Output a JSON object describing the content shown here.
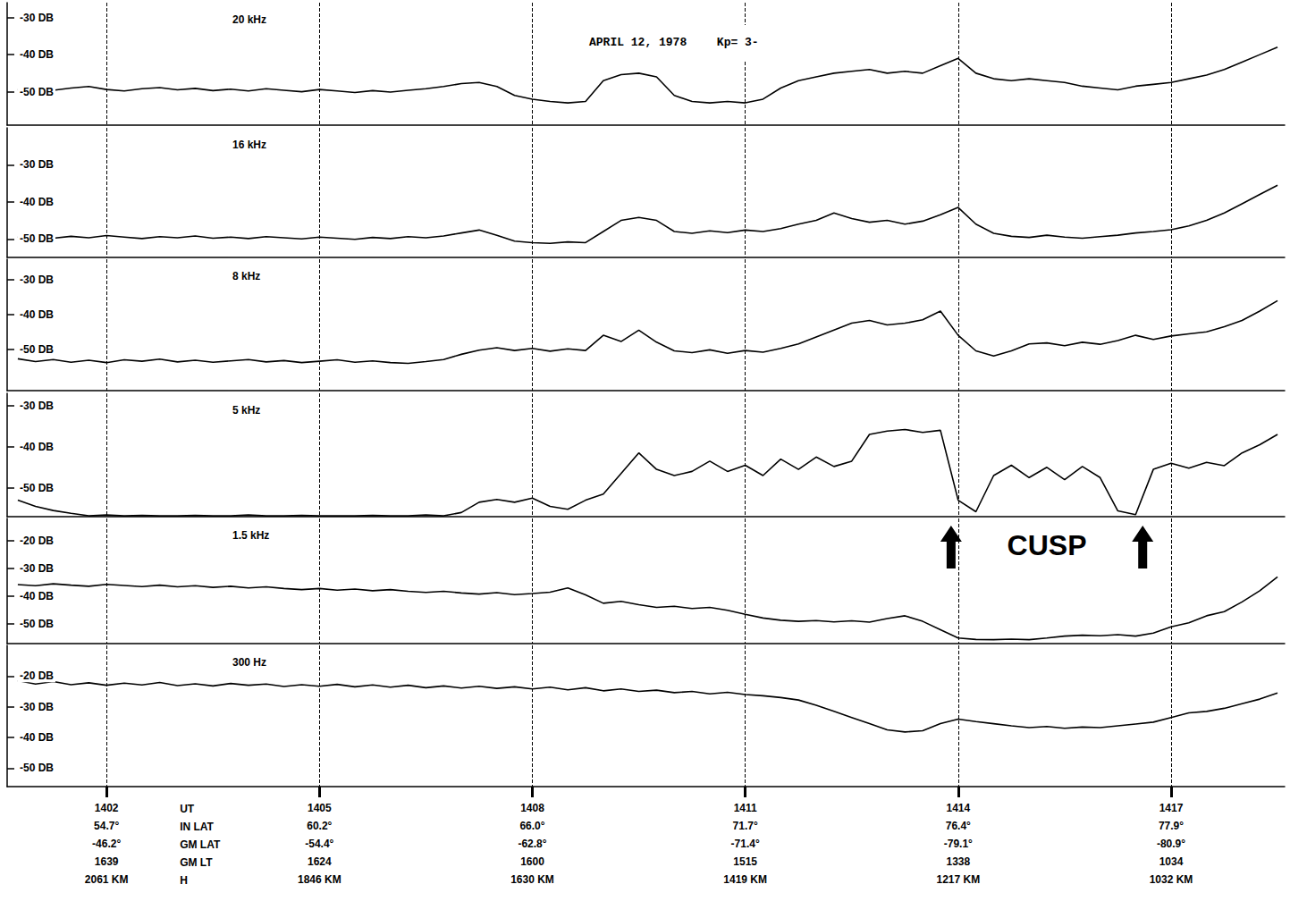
{
  "title": "APRIL 12, 1978",
  "subtitle": "Kp= 3-",
  "annotation": {
    "text": "CUSP",
    "x": [
      1413.9,
      1416.6
    ],
    "panel": "1.5 kHz"
  },
  "ephemeris": {
    "rows": [
      "UT",
      "IN LAT",
      "GM LAT",
      "GM LT",
      "H"
    ],
    "values": [
      [
        "54.7°",
        "-46.2°",
        "1639",
        "2061 KM"
      ],
      [
        "60.2°",
        "-54.4°",
        "1624",
        "1846 KM"
      ],
      [
        "66.0°",
        "-62.8°",
        "1600",
        "1630 KM"
      ],
      [
        "71.7°",
        "-71.4°",
        "1515",
        "1419 KM"
      ],
      [
        "76.4°",
        "-79.1°",
        "1338",
        "1217 KM"
      ],
      [
        "77.9°",
        "-80.9°",
        "1034",
        "1032 KM"
      ]
    ]
  },
  "chart_data": [
    {
      "type": "line",
      "title": "20 kHz",
      "color": "#000000",
      "grid": true,
      "tick_labels": "y",
      "xlim": [
        1400.6,
        1418.6
      ],
      "xticks": [
        1402,
        1405,
        1408,
        1411,
        1414,
        1417
      ],
      "ylim": [
        -59,
        -26
      ],
      "yticks": [
        {
          "value": -30,
          "label": "-30 DB"
        },
        {
          "value": -40,
          "label": "-40 DB"
        },
        {
          "value": -50,
          "label": "-50 DB"
        }
      ],
      "x": [
        1400.75,
        1401,
        1401.25,
        1401.5,
        1401.75,
        1402,
        1402.25,
        1402.5,
        1402.75,
        1403,
        1403.25,
        1403.5,
        1403.75,
        1404,
        1404.25,
        1404.5,
        1404.75,
        1405,
        1405.25,
        1405.5,
        1405.75,
        1406,
        1406.25,
        1406.5,
        1406.75,
        1407,
        1407.25,
        1407.5,
        1407.75,
        1408,
        1408.25,
        1408.5,
        1408.75,
        1409,
        1409.25,
        1409.5,
        1409.75,
        1410,
        1410.25,
        1410.5,
        1410.75,
        1411,
        1411.25,
        1411.5,
        1411.75,
        1412,
        1412.25,
        1412.5,
        1412.75,
        1413,
        1413.25,
        1413.5,
        1413.75,
        1414,
        1414.25,
        1414.5,
        1414.75,
        1415,
        1415.25,
        1415.5,
        1415.75,
        1416,
        1416.25,
        1416.5,
        1416.75,
        1417,
        1417.25,
        1417.5,
        1417.75,
        1418,
        1418.25,
        1418.5
      ],
      "values": [
        -49.5,
        -48.8,
        -49.6,
        -49,
        -48.6,
        -49.4,
        -49.8,
        -49.2,
        -48.9,
        -49.5,
        -49.1,
        -49.7,
        -49.3,
        -49.8,
        -49.2,
        -49.6,
        -50,
        -49.4,
        -49.8,
        -50.2,
        -49.7,
        -50.1,
        -49.6,
        -49.2,
        -48.6,
        -47.8,
        -47.5,
        -48.6,
        -51,
        -52,
        -52.6,
        -53,
        -52.6,
        -47,
        -45.4,
        -45,
        -46,
        -51,
        -52.6,
        -53,
        -52.6,
        -53,
        -52,
        -49,
        -47,
        -46,
        -45,
        -44.5,
        -44,
        -45,
        -44.5,
        -45,
        -43,
        -41,
        -45,
        -46.5,
        -47,
        -46.5,
        -47,
        -47.5,
        -48.5,
        -49,
        -49.5,
        -48.5,
        -48,
        -47.5,
        -46.5,
        -45.5,
        -44,
        -42,
        -40,
        -38
      ]
    },
    {
      "type": "line",
      "title": "16 kHz",
      "color": "#000000",
      "grid": true,
      "tick_labels": "y",
      "xlim": [
        1400.6,
        1418.6
      ],
      "xticks": [
        1402,
        1405,
        1408,
        1411,
        1414,
        1417
      ],
      "ylim": [
        -55,
        -20
      ],
      "yticks": [
        {
          "value": -30,
          "label": "-30 DB"
        },
        {
          "value": -40,
          "label": "-40 DB"
        },
        {
          "value": -50,
          "label": "-50 DB"
        }
      ],
      "x": [
        1400.75,
        1401,
        1401.25,
        1401.5,
        1401.75,
        1402,
        1402.25,
        1402.5,
        1402.75,
        1403,
        1403.25,
        1403.5,
        1403.75,
        1404,
        1404.25,
        1404.5,
        1404.75,
        1405,
        1405.25,
        1405.5,
        1405.75,
        1406,
        1406.25,
        1406.5,
        1406.75,
        1407,
        1407.25,
        1407.5,
        1407.75,
        1408,
        1408.25,
        1408.5,
        1408.75,
        1409,
        1409.25,
        1409.5,
        1409.75,
        1410,
        1410.25,
        1410.5,
        1410.75,
        1411,
        1411.25,
        1411.5,
        1411.75,
        1412,
        1412.25,
        1412.5,
        1412.75,
        1413,
        1413.25,
        1413.5,
        1413.75,
        1414,
        1414.25,
        1414.5,
        1414.75,
        1415,
        1415.25,
        1415.5,
        1415.75,
        1416,
        1416.25,
        1416.5,
        1416.75,
        1417,
        1417.25,
        1417.5,
        1417.75,
        1418,
        1418.25,
        1418.5
      ],
      "values": [
        -49.6,
        -49,
        -49.8,
        -49.3,
        -49.7,
        -49.1,
        -49.5,
        -49.9,
        -49.4,
        -49.7,
        -49.2,
        -49.8,
        -49.5,
        -49.9,
        -49.4,
        -49.7,
        -50,
        -49.5,
        -49.8,
        -50.1,
        -49.6,
        -49.9,
        -49.4,
        -49.7,
        -49.2,
        -48.4,
        -47.6,
        -49,
        -50.6,
        -51,
        -51.2,
        -50.8,
        -51,
        -48,
        -45,
        -44.2,
        -45,
        -48,
        -48.5,
        -47.8,
        -48.3,
        -47.6,
        -48,
        -47.2,
        -46,
        -45,
        -43,
        -44.5,
        -45.5,
        -45,
        -46,
        -45.2,
        -43.5,
        -41.5,
        -46,
        -48.5,
        -49.3,
        -49.6,
        -49,
        -49.5,
        -49.8,
        -49.4,
        -49,
        -48.4,
        -48,
        -47.5,
        -46.5,
        -45,
        -43,
        -40.5,
        -38,
        -35.5
      ]
    },
    {
      "type": "line",
      "title": "8 kHz",
      "color": "#000000",
      "grid": true,
      "tick_labels": "y",
      "xlim": [
        1400.6,
        1418.6
      ],
      "xticks": [
        1402,
        1405,
        1408,
        1411,
        1414,
        1417
      ],
      "ylim": [
        -62,
        -24
      ],
      "yticks": [
        {
          "value": -30,
          "label": "-30 DB"
        },
        {
          "value": -40,
          "label": "-40 DB"
        },
        {
          "value": -50,
          "label": "-50 DB"
        }
      ],
      "x": [
        1400.75,
        1401,
        1401.25,
        1401.5,
        1401.75,
        1402,
        1402.25,
        1402.5,
        1402.75,
        1403,
        1403.25,
        1403.5,
        1403.75,
        1404,
        1404.25,
        1404.5,
        1404.75,
        1405,
        1405.25,
        1405.5,
        1405.75,
        1406,
        1406.25,
        1406.5,
        1406.75,
        1407,
        1407.25,
        1407.5,
        1407.75,
        1408,
        1408.25,
        1408.5,
        1408.75,
        1409,
        1409.25,
        1409.5,
        1409.75,
        1410,
        1410.25,
        1410.5,
        1410.75,
        1411,
        1411.25,
        1411.5,
        1411.75,
        1412,
        1412.25,
        1412.5,
        1412.75,
        1413,
        1413.25,
        1413.5,
        1413.75,
        1414,
        1414.25,
        1414.5,
        1414.75,
        1415,
        1415.25,
        1415.5,
        1415.75,
        1416,
        1416.25,
        1416.5,
        1416.75,
        1417,
        1417.25,
        1417.5,
        1417.75,
        1418,
        1418.25,
        1418.5
      ],
      "values": [
        -52.8,
        -53.6,
        -53,
        -53.8,
        -53.2,
        -53.9,
        -53.1,
        -53.5,
        -52.9,
        -53.7,
        -53.2,
        -53.8,
        -53.4,
        -53,
        -53.7,
        -53.3,
        -53.9,
        -53.5,
        -53.1,
        -53.8,
        -53.4,
        -53.9,
        -54.1,
        -53.6,
        -53,
        -51.5,
        -50.3,
        -49.6,
        -50.4,
        -49.8,
        -50.6,
        -49.9,
        -50.4,
        -46,
        -47.8,
        -44.5,
        -48,
        -50.5,
        -51,
        -50.2,
        -51.2,
        -50.4,
        -50.9,
        -49.8,
        -48.5,
        -46.5,
        -44.5,
        -42.5,
        -41.7,
        -43,
        -42.5,
        -41.5,
        -39,
        -46,
        -50.5,
        -52,
        -50.5,
        -48.5,
        -48.2,
        -49,
        -48,
        -48.6,
        -47.5,
        -46,
        -47.2,
        -46.2,
        -45.6,
        -45,
        -43.5,
        -41.7,
        -39,
        -36
      ]
    },
    {
      "type": "line",
      "title": "5 kHz",
      "color": "#000000",
      "grid": true,
      "tick_labels": "y",
      "xlim": [
        1400.6,
        1418.6
      ],
      "xticks": [
        1402,
        1405,
        1408,
        1411,
        1414,
        1417
      ],
      "ylim": [
        -57,
        -27
      ],
      "yticks": [
        {
          "value": -30,
          "label": "-30 DB"
        },
        {
          "value": -40,
          "label": "-40 DB"
        },
        {
          "value": -50,
          "label": "-50 DB"
        }
      ],
      "x": [
        1400.75,
        1401,
        1401.25,
        1401.5,
        1401.75,
        1402,
        1402.25,
        1402.5,
        1402.75,
        1403,
        1403.25,
        1403.5,
        1403.75,
        1404,
        1404.25,
        1404.5,
        1404.75,
        1405,
        1405.25,
        1405.5,
        1405.75,
        1406,
        1406.25,
        1406.5,
        1406.75,
        1407,
        1407.25,
        1407.5,
        1407.75,
        1408,
        1408.25,
        1408.5,
        1408.75,
        1409,
        1409.25,
        1409.5,
        1409.75,
        1410,
        1410.25,
        1410.5,
        1410.75,
        1411,
        1411.25,
        1411.5,
        1411.75,
        1412,
        1412.25,
        1412.5,
        1412.75,
        1413,
        1413.25,
        1413.5,
        1413.75,
        1414,
        1414.25,
        1414.5,
        1414.75,
        1415,
        1415.25,
        1415.5,
        1415.75,
        1416,
        1416.25,
        1416.5,
        1416.75,
        1417,
        1417.25,
        1417.5,
        1417.75,
        1418,
        1418.25,
        1418.5
      ],
      "values": [
        -53,
        -54.5,
        -55.5,
        -56.2,
        -56.8,
        -56.6,
        -56.8,
        -56.7,
        -56.8,
        -56.8,
        -56.7,
        -56.8,
        -56.8,
        -56.6,
        -56.8,
        -56.8,
        -56.7,
        -56.8,
        -56.8,
        -56.8,
        -56.7,
        -56.8,
        -56.8,
        -56.6,
        -56.8,
        -56,
        -53.5,
        -52.8,
        -53.5,
        -52.5,
        -54.5,
        -55.2,
        -53,
        -51.5,
        -46.5,
        -41.5,
        -45.5,
        -47,
        -46,
        -43.5,
        -46,
        -44.5,
        -47,
        -43,
        -45.5,
        -42.5,
        -44.8,
        -43.5,
        -37,
        -36.2,
        -35.8,
        -36.5,
        -36,
        -53,
        -55.8,
        -47,
        -44.5,
        -47.5,
        -45,
        -48,
        -44.8,
        -47.5,
        -55.6,
        -56.5,
        -45.5,
        -44,
        -45.2,
        -43.8,
        -44.6,
        -41.5,
        -39.5,
        -37
      ]
    },
    {
      "type": "line",
      "title": "1.5 kHz",
      "color": "#000000",
      "grid": true,
      "tick_labels": "y",
      "xlim": [
        1400.6,
        1418.6
      ],
      "xticks": [
        1402,
        1405,
        1408,
        1411,
        1414,
        1417
      ],
      "ylim": [
        -57,
        -12
      ],
      "yticks": [
        {
          "value": -20,
          "label": "-20 DB"
        },
        {
          "value": -30,
          "label": "-30 DB"
        },
        {
          "value": -40,
          "label": "-40 DB"
        },
        {
          "value": -50,
          "label": "-50 DB"
        }
      ],
      "x": [
        1400.75,
        1401,
        1401.25,
        1401.5,
        1401.75,
        1402,
        1402.25,
        1402.5,
        1402.75,
        1403,
        1403.25,
        1403.5,
        1403.75,
        1404,
        1404.25,
        1404.5,
        1404.75,
        1405,
        1405.25,
        1405.5,
        1405.75,
        1406,
        1406.25,
        1406.5,
        1406.75,
        1407,
        1407.25,
        1407.5,
        1407.75,
        1408,
        1408.25,
        1408.5,
        1408.75,
        1409,
        1409.25,
        1409.5,
        1409.75,
        1410,
        1410.25,
        1410.5,
        1410.75,
        1411,
        1411.25,
        1411.5,
        1411.75,
        1412,
        1412.25,
        1412.5,
        1412.75,
        1413,
        1413.25,
        1413.5,
        1413.75,
        1414,
        1414.25,
        1414.5,
        1414.75,
        1415,
        1415.25,
        1415.5,
        1415.75,
        1416,
        1416.25,
        1416.5,
        1416.75,
        1417,
        1417.25,
        1417.5,
        1417.75,
        1418,
        1418.25,
        1418.5
      ],
      "values": [
        -35.8,
        -36.2,
        -35.5,
        -36,
        -36.4,
        -35.7,
        -36.1,
        -36.5,
        -36,
        -36.6,
        -36.2,
        -36.8,
        -36.4,
        -37,
        -36.6,
        -37.2,
        -37.6,
        -37.2,
        -37.8,
        -37.4,
        -38,
        -37.6,
        -38.2,
        -38.6,
        -38.2,
        -38.8,
        -39.2,
        -38.7,
        -39.4,
        -39,
        -38.5,
        -37,
        -39.5,
        -42.5,
        -41.8,
        -43,
        -44,
        -43.6,
        -44.4,
        -44,
        -45,
        -46.5,
        -47.8,
        -48.6,
        -49,
        -48.7,
        -49.2,
        -48.8,
        -49.3,
        -48,
        -47,
        -49,
        -52,
        -55,
        -55.5,
        -55.6,
        -55.4,
        -55.6,
        -55,
        -54.3,
        -54,
        -54.2,
        -53.8,
        -54.3,
        -53.2,
        -51,
        -49.5,
        -47,
        -45.5,
        -42,
        -38,
        -33
      ]
    },
    {
      "type": "line",
      "title": "300 Hz",
      "color": "#000000",
      "grid": true,
      "xlim": [
        1400.6,
        1418.6
      ],
      "xticks": [
        1402,
        1405,
        1408,
        1411,
        1414,
        1417
      ],
      "ylim": [
        -56,
        -10
      ],
      "yticks": [
        {
          "value": -20,
          "label": "-20 DB"
        },
        {
          "value": -30,
          "label": "-30 DB"
        },
        {
          "value": -40,
          "label": "-40 DB"
        },
        {
          "value": -50,
          "label": "-50 DB"
        }
      ],
      "x": [
        1400.75,
        1401,
        1401.25,
        1401.5,
        1401.75,
        1402,
        1402.25,
        1402.5,
        1402.75,
        1403,
        1403.25,
        1403.5,
        1403.75,
        1404,
        1404.25,
        1404.5,
        1404.75,
        1405,
        1405.25,
        1405.5,
        1405.75,
        1406,
        1406.25,
        1406.5,
        1406.75,
        1407,
        1407.25,
        1407.5,
        1407.75,
        1408,
        1408.25,
        1408.5,
        1408.75,
        1409,
        1409.25,
        1409.5,
        1409.75,
        1410,
        1410.25,
        1410.5,
        1410.75,
        1411,
        1411.25,
        1411.5,
        1411.75,
        1412,
        1412.25,
        1412.5,
        1412.75,
        1413,
        1413.25,
        1413.5,
        1413.75,
        1414,
        1414.25,
        1414.5,
        1414.75,
        1415,
        1415.25,
        1415.5,
        1415.75,
        1416,
        1416.25,
        1416.5,
        1416.75,
        1417,
        1417.25,
        1417.5,
        1417.75,
        1418,
        1418.25,
        1418.5
      ],
      "values": [
        -21.5,
        -22.6,
        -21.8,
        -22.8,
        -22.2,
        -23,
        -22.3,
        -22.9,
        -22.1,
        -23.1,
        -22.5,
        -23.2,
        -22.4,
        -23,
        -22.6,
        -23.4,
        -22.8,
        -23.3,
        -22.7,
        -23.5,
        -22.9,
        -23.6,
        -23,
        -23.8,
        -23.2,
        -23.9,
        -23.3,
        -24,
        -23.5,
        -24.2,
        -23.6,
        -24.5,
        -23.8,
        -24.8,
        -24.2,
        -25,
        -24.6,
        -25.4,
        -25,
        -25.8,
        -25.3,
        -26,
        -26.4,
        -27,
        -27.8,
        -29.5,
        -31.5,
        -33.5,
        -35.5,
        -37.5,
        -38.2,
        -37.8,
        -35.5,
        -34,
        -34.8,
        -35.5,
        -36.2,
        -36.8,
        -36.4,
        -37,
        -36.6,
        -36.8,
        -36.2,
        -35.6,
        -35,
        -33.5,
        -32,
        -31.5,
        -30.5,
        -29,
        -27.5,
        -25.5
      ]
    }
  ]
}
